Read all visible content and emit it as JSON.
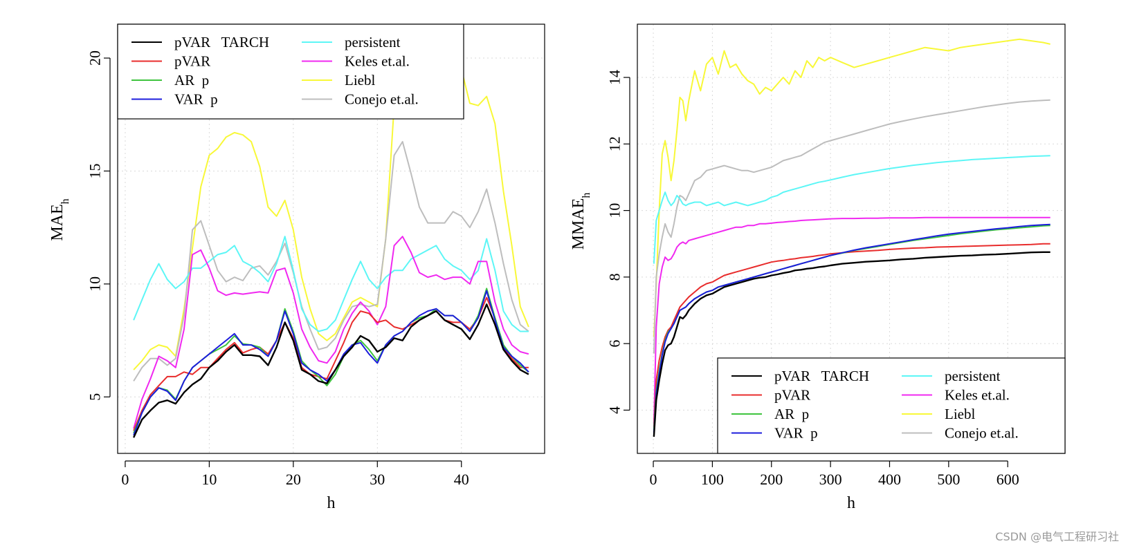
{
  "watermark": "CSDN @电气工程研习社",
  "chart_data": [
    {
      "type": "line",
      "xlabel": "h",
      "ylabel": "MAE",
      "ylabel_sub": "h",
      "xlim": [
        -0.9,
        49.9
      ],
      "ylim": [
        2.5,
        21.5
      ],
      "xticks": [
        0,
        10,
        20,
        30,
        40
      ],
      "yticks": [
        5,
        10,
        15,
        20
      ],
      "grid": true,
      "legend_position": "top-left",
      "x": [
        1,
        2,
        3,
        4,
        5,
        6,
        7,
        8,
        9,
        10,
        11,
        12,
        13,
        14,
        15,
        16,
        17,
        18,
        19,
        20,
        21,
        22,
        23,
        24,
        25,
        26,
        27,
        28,
        29,
        30,
        31,
        32,
        33,
        34,
        35,
        36,
        37,
        38,
        39,
        40,
        41,
        42,
        43,
        44,
        45,
        46,
        47,
        48
      ],
      "series": [
        {
          "name": "pVAR   TARCH",
          "color": "#000000",
          "values": [
            3.2,
            4.0,
            4.4,
            4.75,
            4.85,
            4.7,
            5.2,
            5.55,
            5.8,
            6.3,
            6.6,
            7.0,
            7.3,
            6.85,
            6.85,
            6.8,
            6.4,
            7.2,
            8.3,
            7.5,
            6.2,
            6.0,
            5.7,
            5.6,
            6.2,
            6.8,
            7.2,
            7.7,
            7.5,
            7.0,
            7.2,
            7.6,
            7.5,
            8.1,
            8.4,
            8.6,
            8.8,
            8.4,
            8.2,
            8.0,
            7.55,
            8.2,
            9.1,
            8.2,
            7.1,
            6.6,
            6.2,
            6.0
          ]
        },
        {
          "name": "pVAR",
          "color": "#e82c2c",
          "values": [
            3.5,
            4.4,
            5.1,
            5.5,
            5.9,
            5.9,
            6.1,
            6.0,
            6.3,
            6.3,
            6.7,
            7.1,
            7.4,
            6.95,
            7.1,
            7.2,
            6.9,
            7.5,
            8.3,
            7.6,
            6.3,
            6.0,
            5.9,
            5.8,
            6.6,
            7.4,
            8.3,
            8.8,
            8.7,
            8.3,
            8.4,
            8.1,
            8.0,
            8.2,
            8.4,
            8.6,
            8.8,
            8.4,
            8.3,
            8.3,
            8.0,
            8.5,
            9.4,
            8.5,
            7.2,
            6.7,
            6.3,
            6.3
          ]
        },
        {
          "name": "AR  p",
          "color": "#3ec43e",
          "values": [
            3.4,
            4.3,
            5.0,
            5.4,
            5.3,
            4.9,
            5.7,
            6.3,
            6.6,
            6.9,
            7.1,
            7.3,
            7.7,
            7.35,
            7.3,
            7.2,
            6.8,
            7.5,
            8.9,
            7.9,
            6.6,
            6.2,
            5.9,
            5.5,
            6.0,
            6.8,
            7.3,
            7.5,
            7.1,
            6.6,
            7.3,
            7.7,
            7.9,
            8.3,
            8.5,
            8.6,
            8.9,
            8.6,
            8.6,
            8.3,
            7.9,
            8.6,
            9.8,
            8.5,
            7.3,
            6.8,
            6.4,
            6.1
          ]
        },
        {
          "name": "VAR  p",
          "color": "#1c1cdc",
          "values": [
            3.3,
            4.3,
            5.0,
            5.4,
            5.25,
            4.85,
            5.7,
            6.3,
            6.6,
            6.9,
            7.2,
            7.5,
            7.8,
            7.3,
            7.3,
            7.1,
            6.8,
            7.5,
            8.8,
            7.8,
            6.5,
            6.2,
            6.0,
            5.7,
            6.2,
            6.9,
            7.3,
            7.4,
            6.9,
            6.5,
            7.3,
            7.7,
            7.9,
            8.3,
            8.6,
            8.8,
            8.9,
            8.6,
            8.6,
            8.3,
            7.9,
            8.5,
            9.7,
            8.4,
            7.2,
            6.8,
            6.5,
            6.1
          ]
        },
        {
          "name": "persistent",
          "color": "#5cf6f6",
          "values": [
            8.4,
            9.3,
            10.2,
            10.9,
            10.2,
            9.8,
            10.1,
            10.7,
            10.7,
            11.0,
            11.3,
            11.4,
            11.7,
            11.0,
            10.8,
            10.5,
            10.1,
            10.9,
            12.1,
            10.6,
            8.9,
            8.2,
            7.9,
            8.0,
            8.4,
            9.3,
            10.2,
            11.0,
            10.2,
            9.8,
            10.3,
            10.6,
            10.6,
            11.1,
            11.3,
            11.5,
            11.7,
            11.1,
            10.8,
            10.6,
            10.2,
            10.6,
            12.0,
            10.6,
            8.8,
            8.2,
            7.9,
            7.9
          ]
        },
        {
          "name": "Keles et.al.",
          "color": "#f028f0",
          "values": [
            3.6,
            4.9,
            5.8,
            6.8,
            6.6,
            6.3,
            8.0,
            11.3,
            11.5,
            10.7,
            9.7,
            9.5,
            9.6,
            9.55,
            9.6,
            9.65,
            9.6,
            10.6,
            10.7,
            9.6,
            8.0,
            7.2,
            6.6,
            6.5,
            7.0,
            8.0,
            8.7,
            9.2,
            8.8,
            8.2,
            9.0,
            11.7,
            12.1,
            11.4,
            10.5,
            10.3,
            10.4,
            10.2,
            10.3,
            10.3,
            10.0,
            11.0,
            11.0,
            9.2,
            8.0,
            7.3,
            7.0,
            6.9
          ]
        },
        {
          "name": "Liebl",
          "color": "#f8f838",
          "values": [
            6.2,
            6.6,
            7.1,
            7.3,
            7.2,
            6.8,
            8.9,
            11.6,
            14.3,
            15.7,
            16.0,
            16.5,
            16.7,
            16.6,
            16.3,
            15.2,
            13.4,
            13.0,
            13.7,
            12.4,
            10.3,
            8.9,
            7.8,
            7.5,
            7.8,
            8.5,
            9.2,
            9.4,
            9.2,
            9.0,
            12.0,
            17.9,
            20.0,
            20.8,
            20.4,
            20.6,
            20.5,
            20.5,
            20.4,
            19.5,
            18.0,
            17.9,
            18.3,
            17.1,
            14.1,
            11.7,
            9.0,
            8.1
          ]
        },
        {
          "name": "Conejo et.al.",
          "color": "#bdbdbd",
          "values": [
            5.7,
            6.3,
            6.7,
            6.7,
            6.4,
            6.7,
            8.6,
            12.4,
            12.8,
            11.7,
            10.6,
            10.1,
            10.3,
            10.15,
            10.7,
            10.8,
            10.4,
            11.0,
            11.8,
            10.5,
            9.0,
            8.0,
            7.1,
            7.2,
            7.6,
            8.4,
            9.0,
            9.1,
            9.0,
            9.1,
            12.0,
            15.7,
            16.3,
            14.9,
            13.4,
            12.7,
            12.7,
            12.7,
            13.2,
            13.0,
            12.5,
            13.2,
            14.2,
            12.7,
            10.9,
            9.3,
            8.2,
            7.9
          ]
        }
      ]
    },
    {
      "type": "line",
      "xlabel": "h",
      "ylabel": "MMAE",
      "ylabel_sub": "h",
      "xlim": [
        -27,
        697
      ],
      "ylim": [
        2.7,
        15.6
      ],
      "xticks": [
        0,
        100,
        200,
        300,
        400,
        500,
        600
      ],
      "yticks": [
        4,
        6,
        8,
        10,
        12,
        14
      ],
      "grid": true,
      "legend_position": "bottom-right",
      "x": [
        1,
        5,
        10,
        15,
        20,
        25,
        30,
        35,
        40,
        45,
        50,
        55,
        60,
        70,
        80,
        90,
        100,
        110,
        120,
        130,
        140,
        150,
        160,
        170,
        180,
        190,
        200,
        210,
        220,
        230,
        240,
        250,
        260,
        270,
        280,
        290,
        300,
        320,
        340,
        360,
        380,
        400,
        420,
        440,
        460,
        480,
        500,
        520,
        540,
        560,
        580,
        600,
        620,
        640,
        660,
        672
      ],
      "series": [
        {
          "name": "pVAR   TARCH",
          "color": "#000000",
          "values": [
            3.2,
            4.3,
            4.9,
            5.4,
            5.8,
            5.95,
            6.0,
            6.2,
            6.5,
            6.8,
            6.75,
            6.85,
            7.0,
            7.2,
            7.35,
            7.45,
            7.5,
            7.6,
            7.7,
            7.75,
            7.8,
            7.85,
            7.9,
            7.95,
            7.98,
            8.0,
            8.05,
            8.08,
            8.12,
            8.15,
            8.2,
            8.22,
            8.25,
            8.27,
            8.3,
            8.32,
            8.35,
            8.4,
            8.43,
            8.46,
            8.48,
            8.5,
            8.53,
            8.55,
            8.58,
            8.6,
            8.62,
            8.64,
            8.65,
            8.67,
            8.68,
            8.7,
            8.72,
            8.74,
            8.75,
            8.75
          ]
        },
        {
          "name": "pVAR",
          "color": "#e82c2c",
          "values": [
            3.5,
            4.9,
            5.5,
            5.9,
            6.2,
            6.4,
            6.5,
            6.7,
            6.9,
            7.1,
            7.2,
            7.3,
            7.4,
            7.55,
            7.7,
            7.8,
            7.85,
            7.95,
            8.05,
            8.1,
            8.15,
            8.2,
            8.25,
            8.3,
            8.35,
            8.4,
            8.45,
            8.48,
            8.5,
            8.53,
            8.55,
            8.58,
            8.6,
            8.62,
            8.65,
            8.67,
            8.7,
            8.73,
            8.76,
            8.78,
            8.8,
            8.83,
            8.85,
            8.87,
            8.88,
            8.9,
            8.91,
            8.92,
            8.93,
            8.94,
            8.95,
            8.96,
            8.97,
            8.98,
            9.0,
            9.0
          ]
        },
        {
          "name": "AR  p",
          "color": "#3ec43e",
          "values": [
            3.4,
            4.6,
            5.2,
            5.7,
            6.1,
            6.35,
            6.45,
            6.6,
            6.8,
            7.0,
            7.05,
            7.1,
            7.2,
            7.35,
            7.45,
            7.55,
            7.6,
            7.7,
            7.75,
            7.8,
            7.85,
            7.9,
            7.95,
            8.0,
            8.05,
            8.1,
            8.15,
            8.2,
            8.25,
            8.3,
            8.35,
            8.4,
            8.45,
            8.5,
            8.55,
            8.6,
            8.65,
            8.72,
            8.8,
            8.86,
            8.92,
            8.98,
            9.04,
            9.1,
            9.15,
            9.2,
            9.25,
            9.3,
            9.34,
            9.38,
            9.42,
            9.45,
            9.48,
            9.51,
            9.54,
            9.55
          ]
        },
        {
          "name": "VAR  p",
          "color": "#1c1cdc",
          "values": [
            3.3,
            4.5,
            5.1,
            5.65,
            6.05,
            6.3,
            6.45,
            6.6,
            6.8,
            7.0,
            7.05,
            7.1,
            7.2,
            7.35,
            7.45,
            7.55,
            7.6,
            7.7,
            7.75,
            7.8,
            7.85,
            7.9,
            7.95,
            8.0,
            8.05,
            8.1,
            8.15,
            8.2,
            8.25,
            8.3,
            8.35,
            8.4,
            8.45,
            8.5,
            8.55,
            8.6,
            8.65,
            8.73,
            8.81,
            8.88,
            8.94,
            9.0,
            9.06,
            9.12,
            9.18,
            9.24,
            9.29,
            9.33,
            9.37,
            9.41,
            9.45,
            9.48,
            9.52,
            9.55,
            9.57,
            9.58
          ]
        },
        {
          "name": "persistent",
          "color": "#5cf6f6",
          "values": [
            8.4,
            9.7,
            10.0,
            10.3,
            10.55,
            10.3,
            10.15,
            10.25,
            10.45,
            10.35,
            10.2,
            10.15,
            10.2,
            10.25,
            10.25,
            10.15,
            10.2,
            10.25,
            10.15,
            10.2,
            10.25,
            10.2,
            10.15,
            10.2,
            10.25,
            10.3,
            10.4,
            10.45,
            10.55,
            10.6,
            10.65,
            10.7,
            10.75,
            10.8,
            10.85,
            10.88,
            10.92,
            11.0,
            11.08,
            11.14,
            11.2,
            11.26,
            11.31,
            11.36,
            11.4,
            11.44,
            11.47,
            11.5,
            11.53,
            11.55,
            11.57,
            11.59,
            11.61,
            11.63,
            11.64,
            11.65
          ]
        },
        {
          "name": "Keles et.al.",
          "color": "#f028f0",
          "values": [
            3.6,
            6.5,
            7.8,
            8.3,
            8.6,
            8.5,
            8.55,
            8.7,
            8.9,
            9.0,
            9.05,
            9.0,
            9.1,
            9.15,
            9.2,
            9.25,
            9.3,
            9.35,
            9.4,
            9.45,
            9.5,
            9.5,
            9.55,
            9.55,
            9.6,
            9.6,
            9.62,
            9.64,
            9.65,
            9.67,
            9.68,
            9.7,
            9.71,
            9.72,
            9.73,
            9.74,
            9.75,
            9.76,
            9.76,
            9.77,
            9.77,
            9.78,
            9.78,
            9.78,
            9.79,
            9.79,
            9.79,
            9.79,
            9.79,
            9.79,
            9.79,
            9.79,
            9.79,
            9.79,
            9.79,
            9.79
          ]
        },
        {
          "name": "Liebl",
          "color": "#f8f838",
          "values": [
            6.2,
            7.8,
            10.0,
            11.7,
            12.1,
            11.6,
            10.9,
            11.5,
            12.4,
            13.4,
            13.3,
            12.7,
            13.3,
            14.2,
            13.6,
            14.4,
            14.6,
            14.1,
            14.8,
            14.3,
            14.4,
            14.1,
            13.9,
            13.8,
            13.5,
            13.7,
            13.6,
            13.8,
            14.0,
            13.8,
            14.2,
            14.0,
            14.5,
            14.3,
            14.6,
            14.5,
            14.6,
            14.45,
            14.3,
            14.4,
            14.5,
            14.6,
            14.7,
            14.8,
            14.9,
            14.85,
            14.8,
            14.9,
            14.95,
            15.0,
            15.05,
            15.1,
            15.15,
            15.1,
            15.05,
            15.0
          ]
        },
        {
          "name": "Conejo et.al.",
          "color": "#bdbdbd",
          "values": [
            5.7,
            8.0,
            8.7,
            9.2,
            9.6,
            9.35,
            9.2,
            9.6,
            10.1,
            10.45,
            10.4,
            10.3,
            10.5,
            10.9,
            11.0,
            11.2,
            11.25,
            11.3,
            11.35,
            11.3,
            11.25,
            11.2,
            11.2,
            11.15,
            11.2,
            11.25,
            11.3,
            11.4,
            11.5,
            11.55,
            11.6,
            11.65,
            11.75,
            11.85,
            11.95,
            12.05,
            12.1,
            12.2,
            12.3,
            12.4,
            12.5,
            12.6,
            12.68,
            12.75,
            12.82,
            12.88,
            12.94,
            13.0,
            13.06,
            13.12,
            13.17,
            13.22,
            13.26,
            13.29,
            13.31,
            13.32
          ]
        }
      ]
    }
  ]
}
